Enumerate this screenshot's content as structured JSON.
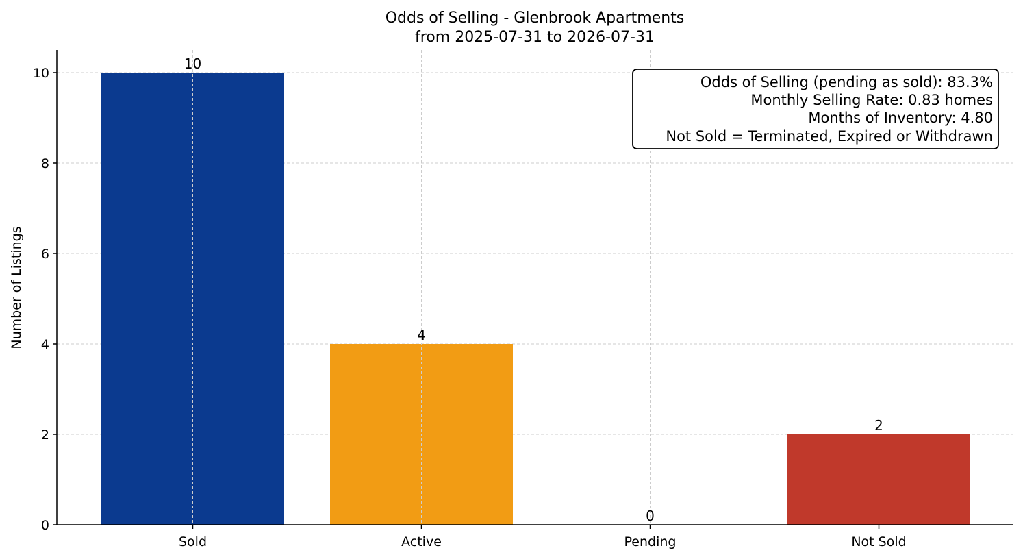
{
  "chart_data": {
    "type": "bar",
    "title": "Odds of Selling - Glenbrook Apartments",
    "subtitle": "from 2025-07-31 to 2026-07-31",
    "xlabel": "",
    "ylabel": "Number of Listings",
    "categories": [
      "Sold",
      "Active",
      "Pending",
      "Not Sold"
    ],
    "values": [
      10,
      4,
      0,
      2
    ],
    "colors": [
      "#0b3a8f",
      "#f29c14",
      "#9e9e9e",
      "#c0392b"
    ],
    "ylim": [
      0,
      10.5
    ],
    "yticks": [
      0,
      2,
      4,
      6,
      8,
      10
    ],
    "grid": true,
    "info_box": {
      "position": "top-right",
      "lines": [
        "Odds of Selling (pending as sold): 83.3%",
        "Monthly Selling Rate: 0.83 homes",
        "Months of Inventory: 4.80",
        "Not Sold = Terminated, Expired or Withdrawn"
      ]
    }
  }
}
